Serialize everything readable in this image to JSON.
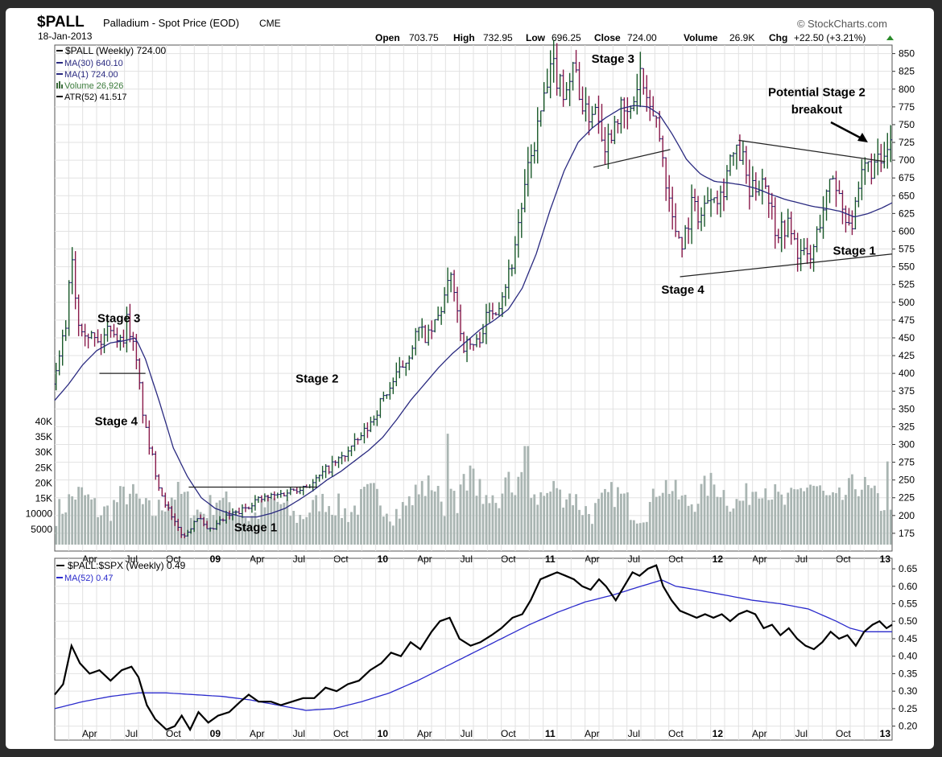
{
  "header": {
    "symbol": "$PALL",
    "description": "Palladium - Spot Price (EOD)",
    "exchange": "CME",
    "date": "18-Jan-2013",
    "watermark": "StockCharts.com",
    "quote": {
      "open_label": "Open",
      "open": "703.75",
      "high_label": "High",
      "high": "732.95",
      "low_label": "Low",
      "low": "696.25",
      "close_label": "Close",
      "close": "724.00",
      "volume_label": "Volume",
      "volume": "26.9K",
      "chg_label": "Chg",
      "chg": "+22.50 (+3.21%)"
    }
  },
  "colors": {
    "price": "#2a2a80",
    "ma": "#2a2a80",
    "volume": "#a9b5b2",
    "ratio": "#000000",
    "ratio_ma": "#2a2acc",
    "grid": "#dedede"
  },
  "chart_data": [
    {
      "type": "line",
      "title": "$PALL (Weekly)",
      "legend": [
        {
          "label": "$PALL (Weekly) 724.00",
          "color": "#000000"
        },
        {
          "label": "MA(30) 640.10",
          "color": "#2a2a80"
        },
        {
          "label": "MA(1) 724.00",
          "color": "#2a2a80"
        },
        {
          "label": "Volume 26,926",
          "color": "#3a7a3a"
        },
        {
          "label": "ATR(52) 41.517",
          "color": "#000000"
        }
      ],
      "x_range": [
        0,
        60
      ],
      "ylim": [
        150,
        862
      ],
      "y_ticks": [
        175,
        200,
        225,
        250,
        275,
        300,
        325,
        350,
        375,
        400,
        425,
        450,
        475,
        500,
        525,
        550,
        575,
        600,
        625,
        650,
        675,
        700,
        725,
        750,
        775,
        800,
        825,
        850
      ],
      "vol_range": [
        0,
        47000
      ],
      "vol_ticks": [
        {
          "label": "5000",
          "v": 5000
        },
        {
          "label": "10000",
          "v": 10000
        },
        {
          "label": "15K",
          "v": 15000
        },
        {
          "label": "20K",
          "v": 20000
        },
        {
          "label": "25K",
          "v": 25000
        },
        {
          "label": "30K",
          "v": 30000
        },
        {
          "label": "35K",
          "v": 35000
        },
        {
          "label": "40K",
          "v": 40000
        }
      ],
      "x_ticks": [
        {
          "label": "Apr",
          "m": 2.5
        },
        {
          "label": "Jul",
          "m": 5.5
        },
        {
          "label": "Oct",
          "m": 8.5
        },
        {
          "label": "09",
          "m": 11.5,
          "bold": true
        },
        {
          "label": "Apr",
          "m": 14.5
        },
        {
          "label": "Jul",
          "m": 17.5
        },
        {
          "label": "Oct",
          "m": 20.5
        },
        {
          "label": "10",
          "m": 23.5,
          "bold": true
        },
        {
          "label": "Apr",
          "m": 26.5
        },
        {
          "label": "Jul",
          "m": 29.5
        },
        {
          "label": "Oct",
          "m": 32.5
        },
        {
          "label": "11",
          "m": 35.5,
          "bold": true
        },
        {
          "label": "Apr",
          "m": 38.5
        },
        {
          "label": "Jul",
          "m": 41.5
        },
        {
          "label": "Oct",
          "m": 44.5
        },
        {
          "label": "12",
          "m": 47.5,
          "bold": true
        },
        {
          "label": "Apr",
          "m": 50.5
        },
        {
          "label": "Jul",
          "m": 53.5
        },
        {
          "label": "Oct",
          "m": 56.5
        },
        {
          "label": "13",
          "m": 59.5,
          "bold": true
        }
      ],
      "price_anchors": [
        [
          0,
          385
        ],
        [
          0.8,
          470
        ],
        [
          1.2,
          580
        ],
        [
          1.6,
          480
        ],
        [
          2.3,
          460
        ],
        [
          3.2,
          440
        ],
        [
          4,
          470
        ],
        [
          4.8,
          440
        ],
        [
          5.2,
          480
        ],
        [
          5.8,
          420
        ],
        [
          6.5,
          320
        ],
        [
          7.5,
          240
        ],
        [
          8.5,
          190
        ],
        [
          9.3,
          170
        ],
        [
          10.2,
          200
        ],
        [
          11,
          175
        ],
        [
          11.8,
          190
        ],
        [
          12.5,
          200
        ],
        [
          13.3,
          205
        ],
        [
          14.2,
          220
        ],
        [
          15.2,
          225
        ],
        [
          16.2,
          230
        ],
        [
          17.5,
          240
        ],
        [
          18.5,
          245
        ],
        [
          19.5,
          265
        ],
        [
          20.5,
          280
        ],
        [
          21.5,
          300
        ],
        [
          22.5,
          325
        ],
        [
          23.5,
          365
        ],
        [
          24.5,
          395
        ],
        [
          25.2,
          420
        ],
        [
          26,
          460
        ],
        [
          26.8,
          450
        ],
        [
          27.5,
          480
        ],
        [
          28.5,
          540
        ],
        [
          29.2,
          440
        ],
        [
          30.2,
          440
        ],
        [
          31,
          480
        ],
        [
          31.8,
          500
        ],
        [
          32.7,
          550
        ],
        [
          33.3,
          620
        ],
        [
          34.2,
          710
        ],
        [
          35,
          780
        ],
        [
          35.7,
          830
        ],
        [
          36.5,
          800
        ],
        [
          37.3,
          830
        ],
        [
          38,
          760
        ],
        [
          38.8,
          780
        ],
        [
          39.5,
          720
        ],
        [
          40.3,
          770
        ],
        [
          41.2,
          760
        ],
        [
          42,
          825
        ],
        [
          42.5,
          760
        ],
        [
          43,
          770
        ],
        [
          43.6,
          700
        ],
        [
          44.3,
          610
        ],
        [
          45,
          585
        ],
        [
          45.7,
          640
        ],
        [
          46.3,
          620
        ],
        [
          47,
          660
        ],
        [
          47.8,
          650
        ],
        [
          48.3,
          700
        ],
        [
          49.2,
          710
        ],
        [
          49.8,
          650
        ],
        [
          50.8,
          680
        ],
        [
          51.7,
          600
        ],
        [
          52.5,
          610
        ],
        [
          53.3,
          570
        ],
        [
          54.2,
          560
        ],
        [
          55,
          630
        ],
        [
          55.8,
          680
        ],
        [
          56.5,
          630
        ],
        [
          57.2,
          610
        ],
        [
          58,
          690
        ],
        [
          58.8,
          690
        ],
        [
          59.5,
          700
        ],
        [
          60,
          725
        ]
      ],
      "ma30_anchors": [
        [
          0,
          362
        ],
        [
          1,
          385
        ],
        [
          2,
          412
        ],
        [
          3,
          432
        ],
        [
          4,
          443
        ],
        [
          5,
          446
        ],
        [
          5.8,
          450
        ],
        [
          6.5,
          420
        ],
        [
          7.5,
          360
        ],
        [
          8.5,
          295
        ],
        [
          9.5,
          255
        ],
        [
          10.5,
          225
        ],
        [
          11.5,
          210
        ],
        [
          12.5,
          203
        ],
        [
          13.5,
          198
        ],
        [
          14.5,
          198
        ],
        [
          15.5,
          203
        ],
        [
          16.5,
          210
        ],
        [
          17.5,
          222
        ],
        [
          18.5,
          235
        ],
        [
          19.5,
          250
        ],
        [
          20.5,
          262
        ],
        [
          21.5,
          277
        ],
        [
          22.5,
          292
        ],
        [
          23.5,
          310
        ],
        [
          24.5,
          335
        ],
        [
          25.5,
          362
        ],
        [
          26.5,
          385
        ],
        [
          27.5,
          408
        ],
        [
          28.5,
          428
        ],
        [
          29.5,
          445
        ],
        [
          30.5,
          462
        ],
        [
          31.5,
          475
        ],
        [
          32.5,
          490
        ],
        [
          33.5,
          520
        ],
        [
          34.5,
          568
        ],
        [
          35.5,
          630
        ],
        [
          36.5,
          685
        ],
        [
          37.5,
          725
        ],
        [
          38.5,
          745
        ],
        [
          39.5,
          760
        ],
        [
          40.5,
          772
        ],
        [
          41.5,
          777
        ],
        [
          42.5,
          775
        ],
        [
          43.3,
          765
        ],
        [
          44.3,
          735
        ],
        [
          45.3,
          700
        ],
        [
          46.3,
          680
        ],
        [
          47.3,
          670
        ],
        [
          48.3,
          668
        ],
        [
          49.3,
          665
        ],
        [
          50.3,
          660
        ],
        [
          51.3,
          652
        ],
        [
          52.3,
          645
        ],
        [
          53.3,
          640
        ],
        [
          54.3,
          635
        ],
        [
          55.3,
          632
        ],
        [
          56.3,
          628
        ],
        [
          57.3,
          620
        ],
        [
          58.3,
          625
        ],
        [
          59.3,
          633
        ],
        [
          60,
          640
        ]
      ],
      "volume_weekly": "procedurally smoothed",
      "annotations": [
        {
          "text": "Stage 3",
          "m": 4.6,
          "y": 472
        },
        {
          "text": "Stage 4",
          "m": 4.4,
          "y": 327
        },
        {
          "text": "Stage 1",
          "m": 14.4,
          "y": 178
        },
        {
          "text": "Stage 2",
          "m": 18.8,
          "y": 387
        },
        {
          "text": "Stage 3",
          "m": 40.0,
          "y": 837
        },
        {
          "text": "Stage 4",
          "m": 45.0,
          "y": 512
        },
        {
          "text": "Stage 1",
          "m": 57.3,
          "y": 567
        },
        {
          "text": "Potential Stage 2",
          "m": 54.6,
          "y": 790
        },
        {
          "text": "breakout",
          "m": 54.6,
          "y": 766
        }
      ],
      "trend_lines": [
        {
          "from": [
            3.2,
            400
          ],
          "to": [
            6.5,
            400
          ]
        },
        {
          "from": [
            9.6,
            240
          ],
          "to": [
            18.8,
            240
          ]
        },
        {
          "from": [
            38.6,
            690
          ],
          "to": [
            44.1,
            715
          ]
        },
        {
          "from": [
            49.0,
            728
          ],
          "to": [
            59.5,
            698
          ]
        },
        {
          "from": [
            44.8,
            536
          ],
          "to": [
            60,
            568
          ]
        }
      ]
    },
    {
      "type": "line",
      "title": "$PALL:$SPX (Weekly)",
      "legend": [
        {
          "label": "$PALL:$SPX (Weekly) 0.49",
          "color": "#000000"
        },
        {
          "label": "MA(52) 0.47",
          "color": "#2a2acc"
        }
      ],
      "ylim": [
        0.16,
        0.68
      ],
      "y_ticks": [
        "0.20",
        "0.25",
        "0.30",
        "0.35",
        "0.40",
        "0.45",
        "0.50",
        "0.55",
        "0.60",
        "0.65"
      ],
      "ratio_anchors": [
        [
          0,
          0.29
        ],
        [
          0.6,
          0.32
        ],
        [
          1.2,
          0.43
        ],
        [
          1.8,
          0.38
        ],
        [
          2.5,
          0.35
        ],
        [
          3.2,
          0.36
        ],
        [
          4,
          0.33
        ],
        [
          4.8,
          0.36
        ],
        [
          5.5,
          0.37
        ],
        [
          6,
          0.34
        ],
        [
          6.6,
          0.26
        ],
        [
          7.2,
          0.22
        ],
        [
          8,
          0.19
        ],
        [
          8.6,
          0.2
        ],
        [
          9.1,
          0.23
        ],
        [
          9.7,
          0.19
        ],
        [
          10.3,
          0.24
        ],
        [
          11,
          0.21
        ],
        [
          11.7,
          0.23
        ],
        [
          12.5,
          0.24
        ],
        [
          13.3,
          0.27
        ],
        [
          13.9,
          0.29
        ],
        [
          14.6,
          0.27
        ],
        [
          15.5,
          0.27
        ],
        [
          16.2,
          0.26
        ],
        [
          17,
          0.27
        ],
        [
          17.8,
          0.28
        ],
        [
          18.6,
          0.28
        ],
        [
          19.4,
          0.31
        ],
        [
          20.2,
          0.3
        ],
        [
          21,
          0.32
        ],
        [
          21.8,
          0.33
        ],
        [
          22.6,
          0.36
        ],
        [
          23.4,
          0.38
        ],
        [
          24.1,
          0.41
        ],
        [
          24.8,
          0.4
        ],
        [
          25.5,
          0.44
        ],
        [
          26.2,
          0.42
        ],
        [
          27,
          0.47
        ],
        [
          27.6,
          0.5
        ],
        [
          28.3,
          0.51
        ],
        [
          29,
          0.45
        ],
        [
          29.8,
          0.43
        ],
        [
          30.5,
          0.44
        ],
        [
          31.3,
          0.46
        ],
        [
          32,
          0.48
        ],
        [
          32.8,
          0.51
        ],
        [
          33.5,
          0.52
        ],
        [
          34.1,
          0.56
        ],
        [
          34.8,
          0.62
        ],
        [
          35.4,
          0.63
        ],
        [
          36,
          0.64
        ],
        [
          36.6,
          0.63
        ],
        [
          37.2,
          0.62
        ],
        [
          37.8,
          0.6
        ],
        [
          38.4,
          0.59
        ],
        [
          39,
          0.62
        ],
        [
          39.5,
          0.6
        ],
        [
          40.2,
          0.56
        ],
        [
          40.8,
          0.6
        ],
        [
          41.4,
          0.64
        ],
        [
          41.9,
          0.63
        ],
        [
          42.5,
          0.65
        ],
        [
          43.1,
          0.66
        ],
        [
          43.6,
          0.6
        ],
        [
          44.2,
          0.56
        ],
        [
          44.8,
          0.53
        ],
        [
          45.4,
          0.52
        ],
        [
          46,
          0.51
        ],
        [
          46.6,
          0.52
        ],
        [
          47.2,
          0.51
        ],
        [
          47.8,
          0.52
        ],
        [
          48.4,
          0.5
        ],
        [
          49,
          0.52
        ],
        [
          49.6,
          0.53
        ],
        [
          50.2,
          0.52
        ],
        [
          50.8,
          0.48
        ],
        [
          51.4,
          0.49
        ],
        [
          52,
          0.46
        ],
        [
          52.6,
          0.48
        ],
        [
          53.2,
          0.45
        ],
        [
          53.8,
          0.43
        ],
        [
          54.4,
          0.42
        ],
        [
          55,
          0.44
        ],
        [
          55.6,
          0.47
        ],
        [
          56.2,
          0.45
        ],
        [
          56.8,
          0.46
        ],
        [
          57.4,
          0.43
        ],
        [
          58,
          0.47
        ],
        [
          58.6,
          0.49
        ],
        [
          59.1,
          0.5
        ],
        [
          59.6,
          0.48
        ],
        [
          60,
          0.49
        ]
      ],
      "ma52_anchors": [
        [
          0,
          0.25
        ],
        [
          2,
          0.27
        ],
        [
          4,
          0.285
        ],
        [
          6,
          0.295
        ],
        [
          8,
          0.295
        ],
        [
          10,
          0.29
        ],
        [
          12,
          0.285
        ],
        [
          14,
          0.275
        ],
        [
          16,
          0.26
        ],
        [
          18,
          0.245
        ],
        [
          20,
          0.25
        ],
        [
          22,
          0.27
        ],
        [
          24,
          0.295
        ],
        [
          26,
          0.33
        ],
        [
          28,
          0.37
        ],
        [
          30,
          0.41
        ],
        [
          32,
          0.45
        ],
        [
          34,
          0.49
        ],
        [
          36,
          0.525
        ],
        [
          38,
          0.555
        ],
        [
          40,
          0.575
        ],
        [
          42,
          0.6
        ],
        [
          43.5,
          0.618
        ],
        [
          44.5,
          0.6
        ],
        [
          46,
          0.59
        ],
        [
          48,
          0.575
        ],
        [
          50,
          0.56
        ],
        [
          52,
          0.55
        ],
        [
          54,
          0.535
        ],
        [
          56,
          0.5
        ],
        [
          57,
          0.48
        ],
        [
          58,
          0.47
        ],
        [
          60,
          0.47
        ]
      ]
    }
  ]
}
